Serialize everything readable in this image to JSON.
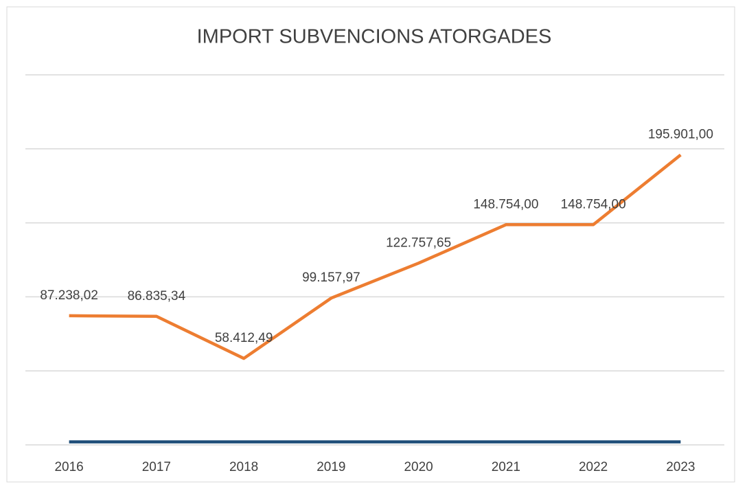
{
  "chart_data": {
    "type": "line",
    "title": "IMPORT SUBVENCIONS ATORGADES",
    "categories": [
      "2016",
      "2017",
      "2018",
      "2019",
      "2020",
      "2021",
      "2022",
      "2023"
    ],
    "series": [
      {
        "color": "#ed7d31",
        "values": [
          87238.02,
          86835.34,
          58412.49,
          99157.97,
          122757.65,
          148754.0,
          148754.0,
          195901.0
        ],
        "value_labels": [
          "87.238,02",
          "86.835,34",
          "58.412,49",
          "99.157,97",
          "122.757,65",
          "148.754,00",
          "148.754,00",
          "195.901,00"
        ]
      },
      {
        "color": "#1f4e79",
        "values": [
          2016,
          2017,
          2018,
          2019,
          2020,
          2021,
          2022,
          2023
        ]
      }
    ],
    "ylim": [
      0,
      250000
    ],
    "yticks": [
      0,
      50000,
      100000,
      150000,
      200000,
      250000
    ],
    "grid": true
  }
}
